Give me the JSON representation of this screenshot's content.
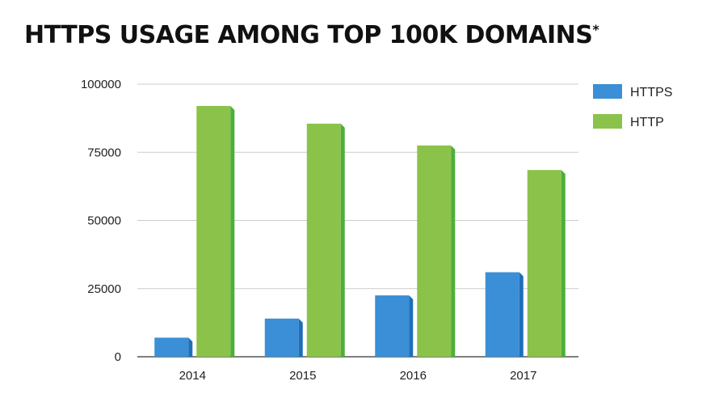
{
  "chart_data": {
    "type": "bar",
    "title": "HTTPS USAGE AMONG TOP 100K DOMAINS",
    "title_mark": "*",
    "categories": [
      "2014",
      "2015",
      "2016",
      "2017"
    ],
    "series": [
      {
        "name": "HTTPS",
        "values": [
          7000,
          14000,
          22500,
          31000
        ],
        "color": "#3a8fd6",
        "shade": "#1f6fb7"
      },
      {
        "name": "HTTP",
        "values": [
          92000,
          85500,
          77500,
          68500
        ],
        "color": "#8bc34a",
        "shade": "#4caf3a"
      }
    ],
    "yticks": [
      "0",
      "25000",
      "50000",
      "75000",
      "100000"
    ],
    "ylim": [
      0,
      100000
    ],
    "grid": true,
    "legend": "right"
  }
}
